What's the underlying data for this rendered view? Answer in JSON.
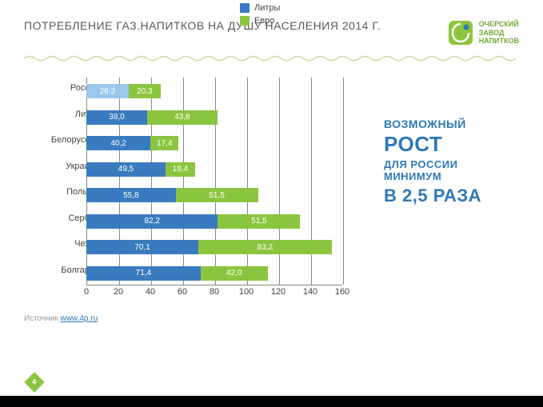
{
  "title": "ПОТРЕБЛЕНИЕ ГАЗ.НАПИТКОВ НА ДУШУ НАСЕЛЕНИЯ 2014 Г.",
  "logo": {
    "brand_lines": [
      "ОЧЕРСКИЙ",
      "ЗАВОД",
      "НАПИТКОВ"
    ],
    "green": "#8bc53f",
    "blue": "#2e79b6"
  },
  "chart": {
    "type": "stacked-bar-horizontal",
    "x_max": 160,
    "x_ticks": [
      0,
      20,
      40,
      60,
      80,
      100,
      120,
      140,
      160
    ],
    "categories": [
      "Россия",
      "Литва",
      "Белоруссия",
      "Украина",
      "Польша",
      "Сербия",
      "Чехия",
      "Болгария"
    ],
    "series": [
      {
        "name": "Литры",
        "color": "#3a7bbf",
        "values": [
          26.3,
          38.0,
          40.2,
          49.5,
          55.8,
          82.2,
          70.1,
          71.4
        ]
      },
      {
        "name": "Евро",
        "color": "#8bc53f",
        "values": [
          20.3,
          43.8,
          17.4,
          18.4,
          51.5,
          51.5,
          83.2,
          42.0
        ]
      }
    ],
    "russia_light_blue": "#9cc6eb",
    "grid_color": "#888888",
    "label_color": "#444444",
    "value_label_fontsize": 10,
    "axis_fontsize": 11
  },
  "legend": {
    "items": [
      {
        "label": "Литры",
        "color": "#3a7bbf"
      },
      {
        "label": "Евро",
        "color": "#8bc53f"
      }
    ]
  },
  "side_text": {
    "l1": "ВОЗМОЖНЫЙ",
    "l2": "РОСТ",
    "l3": "ДЛЯ РОССИИ",
    "l4": "МИНИМУМ",
    "l5": "В 2,5 РАЗА",
    "color": "#2e79b6"
  },
  "source": {
    "prefix": "Источник ",
    "link_text": "www.4p.ru"
  },
  "page_number": "4"
}
